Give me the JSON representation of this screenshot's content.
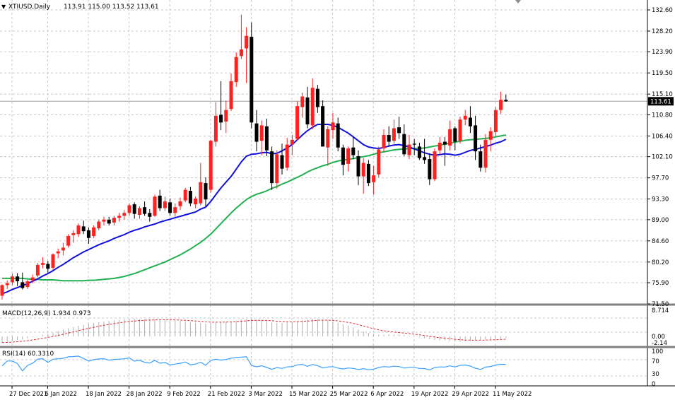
{
  "header": {
    "symbol_label": "XTIUSD,Daily",
    "ohlc_label": "113.91 115.00 113.52 113.61"
  },
  "indicators": {
    "macd_label": "MACD(12,26,9) 1.934 0.973",
    "rsi_label": "RSI(14) 60.3310"
  },
  "colors": {
    "bull": "#ff2020",
    "bear": "#000000",
    "ma_fast": "#1010e0",
    "ma_slow": "#20b050",
    "macd_signal": "#e03030",
    "macd_hist": "#b0b0b0",
    "rsi_line": "#3aa0ff",
    "grid": "#c8c8c8"
  },
  "chart_data": {
    "type": "candlestick",
    "symbol": "XTIUSD",
    "timeframe": "Daily",
    "last_price": 113.61,
    "last_price_label": "113.61",
    "main_axis": {
      "ylim": [
        71.5,
        132.6
      ],
      "ticks": [
        "132.60",
        "128.20",
        "123.90",
        "119.50",
        "115.10",
        "110.80",
        "106.40",
        "102.10",
        "97.70",
        "93.30",
        "89.00",
        "84.60",
        "80.20",
        "75.90",
        "71.50"
      ]
    },
    "x_ticks": [
      "27 Dec 2021",
      "6 Jan 2022",
      "18 Jan 2022",
      "28 Jan 2022",
      "9 Feb 2022",
      "21 Feb 2022",
      "3 Mar 2022",
      "15 Mar 2022",
      "25 Mar 2022",
      "6 Apr 2022",
      "19 Apr 2022",
      "29 Apr 2022",
      "11 May 2022"
    ],
    "x_tick_bar_index": [
      0,
      7,
      15,
      23,
      31,
      39,
      47,
      55,
      63,
      71,
      79,
      87,
      95
    ],
    "candles": [
      [
        73.2,
        75.6,
        72.4,
        75.4
      ],
      [
        75.4,
        76.4,
        74.6,
        75.8
      ],
      [
        76.0,
        77.8,
        75.4,
        77.2
      ],
      [
        77.2,
        77.9,
        75.2,
        76.2
      ],
      [
        76.0,
        78.0,
        74.5,
        74.8
      ],
      [
        75.0,
        76.5,
        74.6,
        76.2
      ],
      [
        76.4,
        77.6,
        75.8,
        77.0
      ],
      [
        77.4,
        80.0,
        77.0,
        79.6
      ],
      [
        79.6,
        81.2,
        78.9,
        80.0
      ],
      [
        79.8,
        80.4,
        78.0,
        78.8
      ],
      [
        79.0,
        82.0,
        78.6,
        81.8
      ],
      [
        82.0,
        83.0,
        81.0,
        82.4
      ],
      [
        82.6,
        84.2,
        81.6,
        83.2
      ],
      [
        83.6,
        86.0,
        83.2,
        85.6
      ],
      [
        85.8,
        86.8,
        84.2,
        86.2
      ],
      [
        86.0,
        88.2,
        85.4,
        87.8
      ],
      [
        87.6,
        88.8,
        86.0,
        86.6
      ],
      [
        86.8,
        87.4,
        84.0,
        85.2
      ],
      [
        85.6,
        87.8,
        85.2,
        87.4
      ],
      [
        87.2,
        89.0,
        86.8,
        88.6
      ],
      [
        88.6,
        89.6,
        87.8,
        89.0
      ],
      [
        89.0,
        89.6,
        87.8,
        88.2
      ],
      [
        88.4,
        89.8,
        87.8,
        89.4
      ],
      [
        89.4,
        90.4,
        88.6,
        89.8
      ],
      [
        89.8,
        91.0,
        89.0,
        90.4
      ],
      [
        90.4,
        92.4,
        89.8,
        92.0
      ],
      [
        92.2,
        92.6,
        89.2,
        90.2
      ],
      [
        90.0,
        91.8,
        89.2,
        91.4
      ],
      [
        91.6,
        92.8,
        89.8,
        90.2
      ],
      [
        90.4,
        91.2,
        88.6,
        89.6
      ],
      [
        89.8,
        94.2,
        89.6,
        93.8
      ],
      [
        94.0,
        95.2,
        90.8,
        91.4
      ],
      [
        91.4,
        93.8,
        90.8,
        92.8
      ],
      [
        92.6,
        93.4,
        89.8,
        90.4
      ],
      [
        90.4,
        92.4,
        89.6,
        91.6
      ],
      [
        91.8,
        93.6,
        91.0,
        92.8
      ],
      [
        93.0,
        95.6,
        92.6,
        95.2
      ],
      [
        95.0,
        95.8,
        91.8,
        92.4
      ],
      [
        92.2,
        93.8,
        91.4,
        93.4
      ],
      [
        92.4,
        100.8,
        92.0,
        96.8
      ],
      [
        96.6,
        97.8,
        91.8,
        93.2
      ],
      [
        95.2,
        105.6,
        94.6,
        105.4
      ],
      [
        105.2,
        113.4,
        104.2,
        110.6
      ],
      [
        110.8,
        117.8,
        107.6,
        109.2
      ],
      [
        109.4,
        113.8,
        107.0,
        111.8
      ],
      [
        112.0,
        119.4,
        111.6,
        117.8
      ],
      [
        117.6,
        123.8,
        116.6,
        122.8
      ],
      [
        123.0,
        131.6,
        122.4,
        124.4
      ],
      [
        124.6,
        129.0,
        117.4,
        127.2
      ],
      [
        127.0,
        130.0,
        108.0,
        109.2
      ],
      [
        109.0,
        111.8,
        103.2,
        105.2
      ],
      [
        105.4,
        109.6,
        102.4,
        108.6
      ],
      [
        108.4,
        110.0,
        102.2,
        103.4
      ],
      [
        103.2,
        104.2,
        95.2,
        96.6
      ],
      [
        96.6,
        103.4,
        95.4,
        102.6
      ],
      [
        102.4,
        104.8,
        98.4,
        99.6
      ],
      [
        99.8,
        106.0,
        99.2,
        104.6
      ],
      [
        104.6,
        106.6,
        102.4,
        105.6
      ],
      [
        105.8,
        113.6,
        105.4,
        112.6
      ],
      [
        112.4,
        115.4,
        110.2,
        114.6
      ],
      [
        114.4,
        116.6,
        108.0,
        108.8
      ],
      [
        108.6,
        118.4,
        107.8,
        116.4
      ],
      [
        116.2,
        117.0,
        111.2,
        112.4
      ],
      [
        112.6,
        113.8,
        104.2,
        104.2
      ],
      [
        104.0,
        108.4,
        100.2,
        107.8
      ],
      [
        107.6,
        111.2,
        105.8,
        109.2
      ],
      [
        109.0,
        110.2,
        103.2,
        104.0
      ],
      [
        104.0,
        104.6,
        98.2,
        100.4
      ],
      [
        100.6,
        104.2,
        99.0,
        103.8
      ],
      [
        104.0,
        106.2,
        101.6,
        102.4
      ],
      [
        102.2,
        103.4,
        96.2,
        98.0
      ],
      [
        98.0,
        101.8,
        94.4,
        100.8
      ],
      [
        100.6,
        101.4,
        96.0,
        96.6
      ],
      [
        96.8,
        100.2,
        94.2,
        98.2
      ],
      [
        98.4,
        104.2,
        97.8,
        103.6
      ],
      [
        103.8,
        107.8,
        103.0,
        106.6
      ],
      [
        106.6,
        108.4,
        104.2,
        105.2
      ],
      [
        105.4,
        109.8,
        104.8,
        108.0
      ],
      [
        108.2,
        110.4,
        105.8,
        107.0
      ],
      [
        106.8,
        108.8,
        102.2,
        102.6
      ],
      [
        102.4,
        106.6,
        101.6,
        104.6
      ],
      [
        104.8,
        105.8,
        102.4,
        104.6
      ],
      [
        104.2,
        105.0,
        101.4,
        101.8
      ],
      [
        102.0,
        105.8,
        100.6,
        101.4
      ],
      [
        101.6,
        102.8,
        96.2,
        97.4
      ],
      [
        97.4,
        103.8,
        97.0,
        103.2
      ],
      [
        103.4,
        106.2,
        102.6,
        105.0
      ],
      [
        105.2,
        106.2,
        100.2,
        104.6
      ],
      [
        104.4,
        109.6,
        103.4,
        107.8
      ],
      [
        108.0,
        108.4,
        103.4,
        105.2
      ],
      [
        105.4,
        110.4,
        104.8,
        109.8
      ],
      [
        109.8,
        111.8,
        108.6,
        110.6
      ],
      [
        110.2,
        112.6,
        107.0,
        108.4
      ],
      [
        108.6,
        110.6,
        101.4,
        103.2
      ],
      [
        103.2,
        104.6,
        99.0,
        99.8
      ],
      [
        99.8,
        106.8,
        98.8,
        105.6
      ],
      [
        105.6,
        108.2,
        103.2,
        107.4
      ],
      [
        107.2,
        112.4,
        106.4,
        111.8
      ],
      [
        111.8,
        115.6,
        111.0,
        113.9
      ],
      [
        113.9,
        115.0,
        113.5,
        113.6
      ]
    ],
    "ma_fast": [
      73.6,
      74.0,
      74.5,
      74.9,
      75.3,
      75.7,
      76.2,
      76.7,
      77.3,
      77.8,
      78.4,
      79.1,
      79.7,
      80.4,
      81.1,
      81.7,
      82.3,
      82.8,
      83.3,
      83.8,
      84.2,
      84.6,
      85.1,
      85.5,
      85.9,
      86.4,
      86.8,
      87.1,
      87.5,
      87.8,
      88.1,
      88.5,
      88.8,
      89.1,
      89.4,
      89.7,
      90.0,
      90.3,
      90.6,
      91.2,
      91.6,
      92.8,
      94.2,
      95.6,
      96.8,
      98.0,
      99.5,
      101.0,
      102.2,
      102.6,
      102.7,
      102.9,
      103.0,
      102.7,
      102.8,
      103.3,
      103.9,
      104.6,
      105.6,
      106.6,
      107.5,
      108.2,
      108.8,
      108.8,
      108.8,
      108.6,
      108.2,
      107.6,
      107.0,
      106.2,
      105.4,
      104.6,
      104.1,
      103.9,
      103.8,
      104.0,
      104.3,
      104.5,
      104.6,
      104.4,
      104.1,
      103.7,
      103.3,
      102.9,
      102.6,
      102.4,
      102.5,
      102.7,
      102.6,
      102.4,
      102.6,
      103.0,
      103.4,
      103.6,
      103.9,
      104.2,
      104.5,
      104.9,
      105.2,
      105.7
    ],
    "ma_slow": [
      76.8,
      76.8,
      76.8,
      76.8,
      76.8,
      76.7,
      76.6,
      76.6,
      76.5,
      76.5,
      76.5,
      76.4,
      76.3,
      76.3,
      76.3,
      76.3,
      76.3,
      76.4,
      76.4,
      76.5,
      76.6,
      76.7,
      76.8,
      77.0,
      77.2,
      77.5,
      77.8,
      78.2,
      78.6,
      79.0,
      79.4,
      79.8,
      80.2,
      80.7,
      81.2,
      81.7,
      82.3,
      82.9,
      83.6,
      84.3,
      85.1,
      86.0,
      87.1,
      88.2,
      89.3,
      90.4,
      91.4,
      92.3,
      93.2,
      93.8,
      94.3,
      94.6,
      95.0,
      95.5,
      95.9,
      96.4,
      96.8,
      97.3,
      97.8,
      98.3,
      98.9,
      99.4,
      99.8,
      100.2,
      100.5,
      100.9,
      101.2,
      101.4,
      101.5,
      101.7,
      101.9,
      102.1,
      102.3,
      102.6,
      102.9,
      103.1,
      103.3,
      103.5,
      103.6,
      103.7,
      103.8,
      103.8,
      103.8,
      103.9,
      104.1,
      104.3,
      104.5,
      104.7,
      104.9,
      105.1,
      105.3,
      105.5,
      105.6,
      105.7,
      105.8,
      105.9,
      106.0,
      106.2,
      106.4,
      106.6
    ],
    "macd": {
      "ylim": [
        -2.14,
        8.714
      ],
      "ticks": [
        "8.714",
        "0.00",
        "-2.14"
      ],
      "value": 1.934,
      "signal": 0.973
    },
    "rsi": {
      "ylim": [
        0,
        100
      ],
      "ticks": [
        "100",
        "70",
        "30",
        "0"
      ],
      "value": 60.331,
      "period": 14
    }
  }
}
